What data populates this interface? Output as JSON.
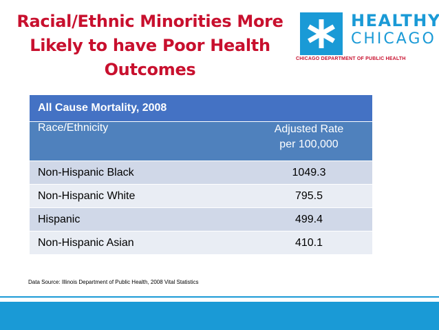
{
  "slide": {
    "title_lines": [
      "Racial/Ethnic Minorities More",
      "Likely to have Poor Health",
      "Outcomes"
    ]
  },
  "logo": {
    "word1": "HEALTHY",
    "word2": "CHICAGO",
    "subtitle": "CHICAGO DEPARTMENT OF PUBLIC HEALTH",
    "icon": "six-pointed-star-icon",
    "color": "#1a9ad6"
  },
  "table": {
    "title": "All Cause Mortality, 2008",
    "col1_header": "Race/Ethnicity",
    "col2_header_lines": [
      "Adjusted Rate",
      "per 100,000"
    ],
    "rows": [
      {
        "group": "Non-Hispanic Black",
        "rate": "1049.3"
      },
      {
        "group": "Non-Hispanic White",
        "rate": "795.5"
      },
      {
        "group": "Hispanic",
        "rate": "499.4"
      },
      {
        "group": "Non-Hispanic Asian",
        "rate": "410.1"
      }
    ],
    "header_color": "#4f81bd",
    "row_color_a": "#d0d8e8",
    "row_color_b": "#e9edf4"
  },
  "source": "Data Source:  Illinois Department of Public Health, 2008  Vital Statistics",
  "accent_color": "#c8102e"
}
